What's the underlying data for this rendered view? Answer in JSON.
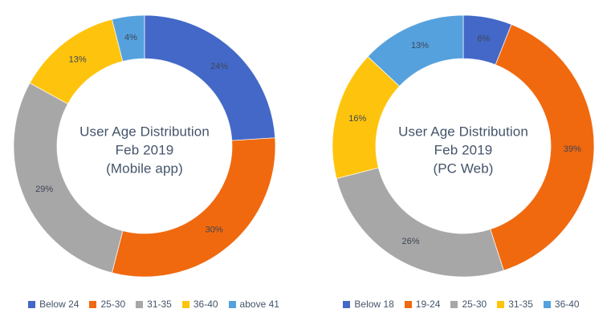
{
  "chart_data": [
    {
      "type": "pie",
      "subtype": "donut",
      "title": "User Age Distribution Feb 2019 (Mobile app)",
      "title_lines": [
        "User Age Distribution",
        "Feb 2019",
        "(Mobile app)"
      ],
      "categories": [
        "Below 24",
        "25-30",
        "31-35",
        "36-40",
        "above 41"
      ],
      "values": [
        24,
        30,
        29,
        13,
        4
      ],
      "unit": "%",
      "colors": [
        "#4368c7",
        "#f0690f",
        "#a7a7a7",
        "#fec40d",
        "#55a1dd"
      ],
      "labels": [
        "24%",
        "30%",
        "29%",
        "13%",
        "4%"
      ],
      "legend_position": "bottom",
      "start_angle_deg": 0,
      "direction": "clockwise",
      "hole_ratio": 0.67
    },
    {
      "type": "pie",
      "subtype": "donut",
      "title": "User Age Distribution Feb 2019 (PC Web)",
      "title_lines": [
        "User Age Distribution",
        "Feb 2019",
        "(PC Web)"
      ],
      "categories": [
        "Below 18",
        "19-24",
        "25-30",
        "31-35",
        "36-40"
      ],
      "values": [
        6,
        39,
        26,
        16,
        13
      ],
      "unit": "%",
      "colors": [
        "#4368c7",
        "#f0690f",
        "#a7a7a7",
        "#fec40d",
        "#55a1dd"
      ],
      "labels": [
        "6%",
        "39%",
        "26%",
        "16%",
        "13%"
      ],
      "legend_position": "bottom",
      "start_angle_deg": 0,
      "direction": "clockwise",
      "hole_ratio": 0.67
    }
  ],
  "style": {
    "title_color": "#44546a",
    "label_color": "#3f4558",
    "legend_text_color": "#44546a",
    "background": "#ffffff"
  }
}
